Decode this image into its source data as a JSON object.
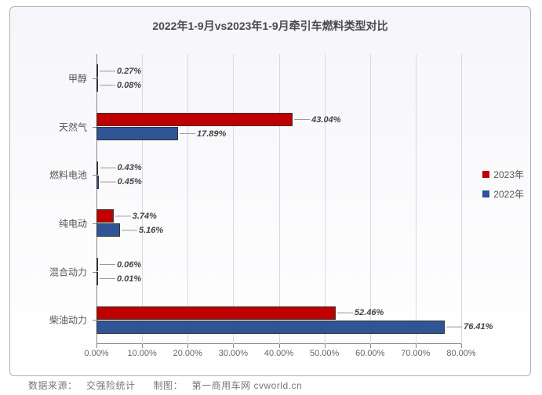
{
  "title": "2022年1-9月vs2023年1-9月牵引车燃料类型对比",
  "title_fontsize": 14,
  "source_label": "数据来源：",
  "source_value": "交强险统计",
  "maker_label": "制图：",
  "maker_value": "第一商用车网 cvworld.cn",
  "chart": {
    "type": "horizontal_grouped_bar",
    "background_gradient_top": "#f6f6fa",
    "background_gradient_bottom": "#ffffff",
    "frame_border": "#b0b0b0",
    "grid_color": "#d8d8e0",
    "axis_color": "#888888",
    "tick_fontsize": 11,
    "bar_border": "#333333",
    "xmin": 0,
    "xmax": 80,
    "xtick_step": 10,
    "xtick_format": "percent2",
    "categories": [
      "甲醇",
      "天然气",
      "燃料电池",
      "纯电动",
      "混合动力",
      "柴油动力"
    ],
    "series": [
      {
        "name": "2023年",
        "color": "#c00000",
        "values": [
          0.27,
          43.04,
          0.43,
          3.74,
          0.06,
          52.46
        ]
      },
      {
        "name": "2022年",
        "color": "#2f5597",
        "values": [
          0.08,
          17.89,
          0.45,
          5.16,
          0.01,
          76.41
        ]
      }
    ],
    "legend": {
      "items": [
        {
          "label": "2023年",
          "color": "#c00000"
        },
        {
          "label": "2022年",
          "color": "#2f5597"
        }
      ]
    }
  }
}
